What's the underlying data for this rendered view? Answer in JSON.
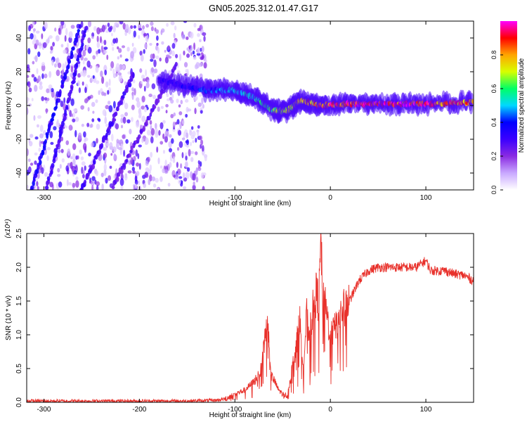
{
  "title": "GN05.2025.312.01.47.G17",
  "colors": {
    "snr_line": "#e8302a",
    "frame": "#000000",
    "colormap": [
      "#ffffff",
      "#c9a8ff",
      "#8a2be2",
      "#3b00ff",
      "#0000ff",
      "#00d8ff",
      "#00ff66",
      "#d8ff00",
      "#ffa500",
      "#ff0000",
      "#ff00ff"
    ]
  },
  "chart_data": [
    {
      "type": "heatmap",
      "name": "spectrogram",
      "xlabel": "Height of straight line (km)",
      "ylabel": "Frequency (Hz)",
      "xlim": [
        -318,
        150
      ],
      "ylim": [
        -50,
        50
      ],
      "xticks": [
        -300,
        -200,
        -100,
        0,
        100
      ],
      "yticks": [
        -40,
        -20,
        0,
        20,
        40
      ],
      "colorbar": {
        "label": "Normalized spectral amplitude",
        "range": [
          0,
          1
        ],
        "ticks": [
          0.0,
          0.2,
          0.4,
          0.6,
          0.8
        ]
      },
      "features": [
        {
          "name": "diagonal streak 1",
          "x": [
            -313,
            -262
          ],
          "y": [
            -50,
            48
          ],
          "amplitude": 0.35
        },
        {
          "name": "diagonal streak 2",
          "x": [
            -298,
            -255
          ],
          "y": [
            -52,
            48
          ],
          "amplitude": 0.3
        },
        {
          "name": "diagonal streak 3",
          "x": [
            -262,
            -205
          ],
          "y": [
            -52,
            20
          ],
          "amplitude": 0.28
        },
        {
          "name": "diagonal streak 4",
          "x": [
            -228,
            -160
          ],
          "y": [
            -48,
            25
          ],
          "amplitude": 0.25
        },
        {
          "name": "main signal track",
          "x": [
            -180,
            -130,
            -100,
            -80,
            -60,
            -45,
            -30,
            -10,
            20,
            60,
            100,
            150
          ],
          "y": [
            15,
            9,
            9,
            5,
            -3,
            -3,
            3,
            0,
            1,
            1,
            1,
            2
          ],
          "amplitude": [
            0.3,
            0.4,
            0.5,
            0.55,
            0.6,
            0.7,
            0.75,
            0.85,
            0.9,
            0.95,
            0.9,
            0.8
          ]
        }
      ],
      "noise_region_x": [
        -318,
        -130
      ]
    },
    {
      "type": "line",
      "name": "snr",
      "xlabel": "Height of straight line (km)",
      "ylabel": "SNR (10 * v/v)",
      "y_multiplier": "(x10⁴)",
      "xlim": [
        -318,
        150
      ],
      "ylim": [
        0,
        2.5
      ],
      "xticks": [
        -300,
        -200,
        -100,
        0,
        100
      ],
      "yticks": [
        "0.0",
        "0.5",
        "1.0",
        "1.5",
        "2.0",
        "2.5"
      ],
      "series": [
        {
          "name": "SNR",
          "x": [
            -318,
            -300,
            -250,
            -200,
            -150,
            -120,
            -110,
            -100,
            -90,
            -80,
            -72,
            -68,
            -65,
            -62,
            -58,
            -55,
            -50,
            -45,
            -40,
            -35,
            -32,
            -28,
            -25,
            -22,
            -18,
            -15,
            -12,
            -10,
            -8,
            -5,
            0,
            5,
            10,
            20,
            30,
            40,
            50,
            60,
            70,
            80,
            90,
            95,
            100,
            105,
            110,
            120,
            130,
            140,
            150
          ],
          "y": [
            0.02,
            0.02,
            0.02,
            0.02,
            0.02,
            0.03,
            0.05,
            0.12,
            0.18,
            0.3,
            0.5,
            1.05,
            1.2,
            0.4,
            0.3,
            0.2,
            0.12,
            0.1,
            0.5,
            0.9,
            1.2,
            0.5,
            1.3,
            1.0,
            1.4,
            1.6,
            1.5,
            2.4,
            1.5,
            1.4,
            1.0,
            1.1,
            1.3,
            1.5,
            1.8,
            1.95,
            2.0,
            2.0,
            2.0,
            2.0,
            2.0,
            2.05,
            2.1,
            1.95,
            1.95,
            1.95,
            1.9,
            1.88,
            1.8
          ]
        }
      ]
    }
  ]
}
